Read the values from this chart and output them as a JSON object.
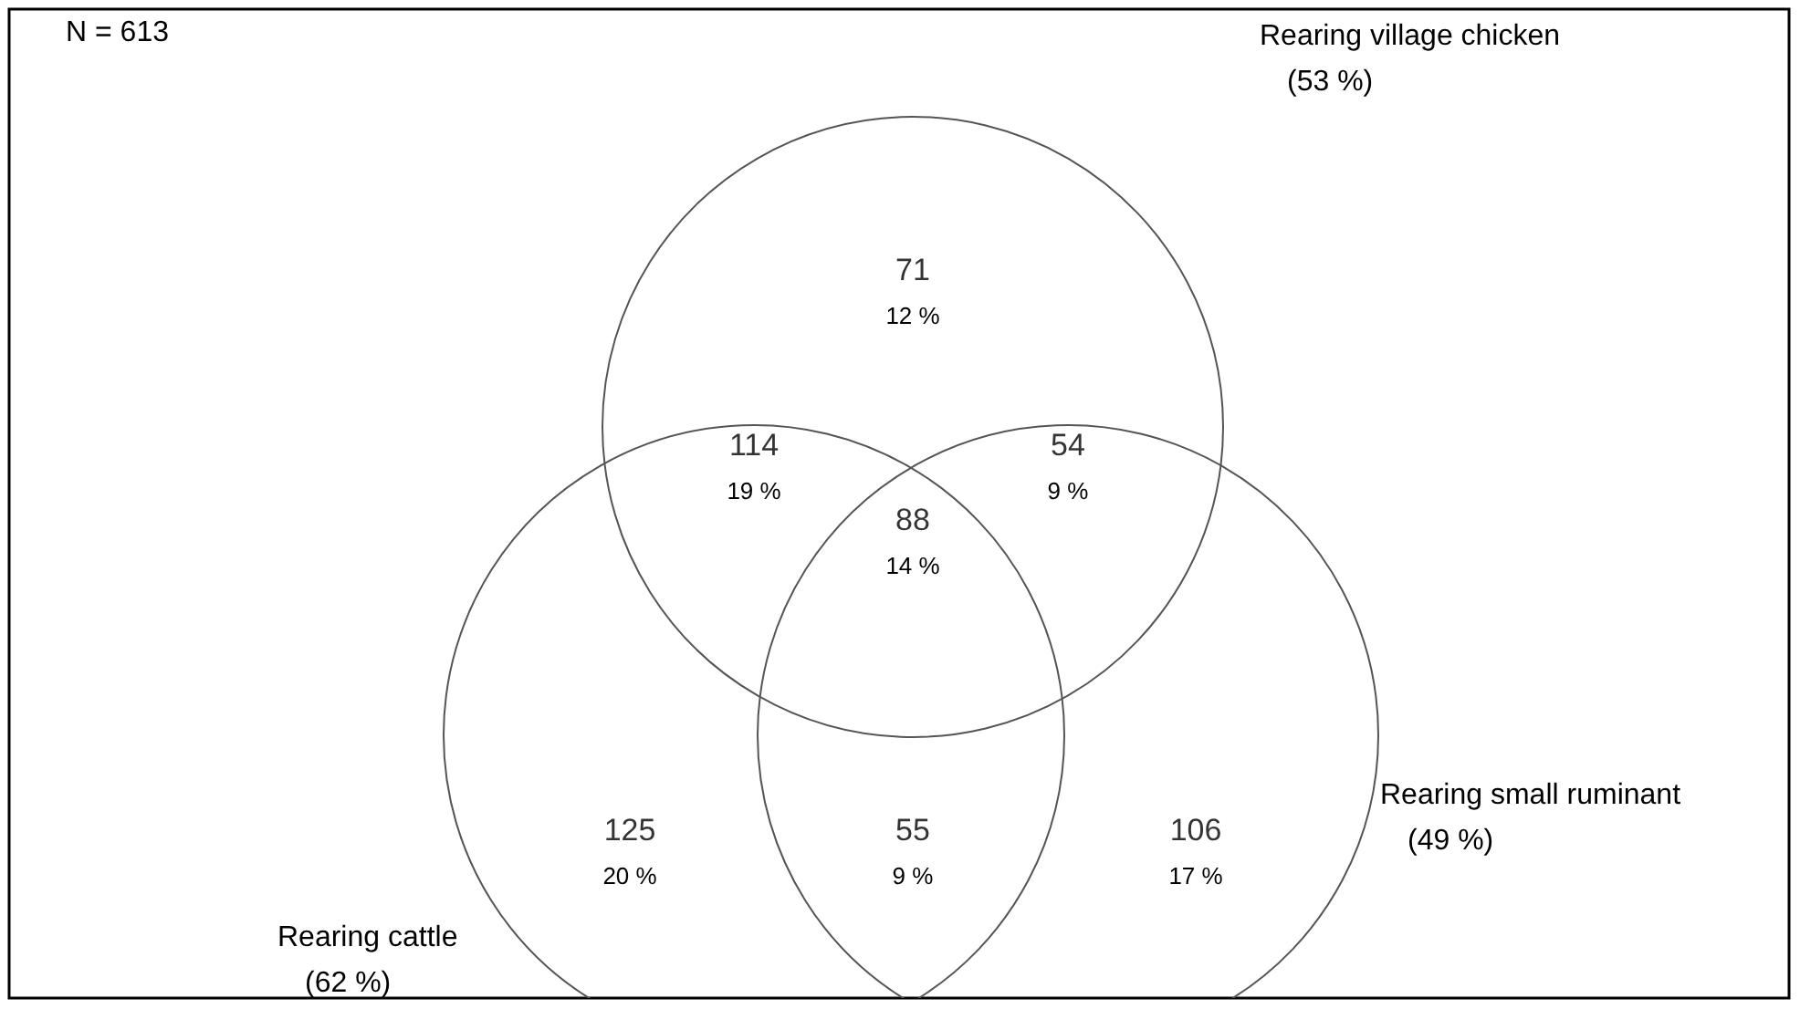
{
  "chart_data": {
    "type": "other",
    "categories": [
      null,
      null,
      null,
      null,
      null,
      null,
      null
    ],
    "values": [
      71,
      114,
      54,
      88,
      125,
      55,
      106
    ],
    "data_labels": true,
    "annotations": [
      "N = 613",
      "Rearing village chicken\n(53 %)",
      "Rearing small ruminant\n(49 %)",
      "Rearing cattle\n(62 %)",
      "12 %",
      "19 %",
      "9 %",
      "14 %",
      "20 %",
      "9 %",
      "17 %"
    ]
  }
}
